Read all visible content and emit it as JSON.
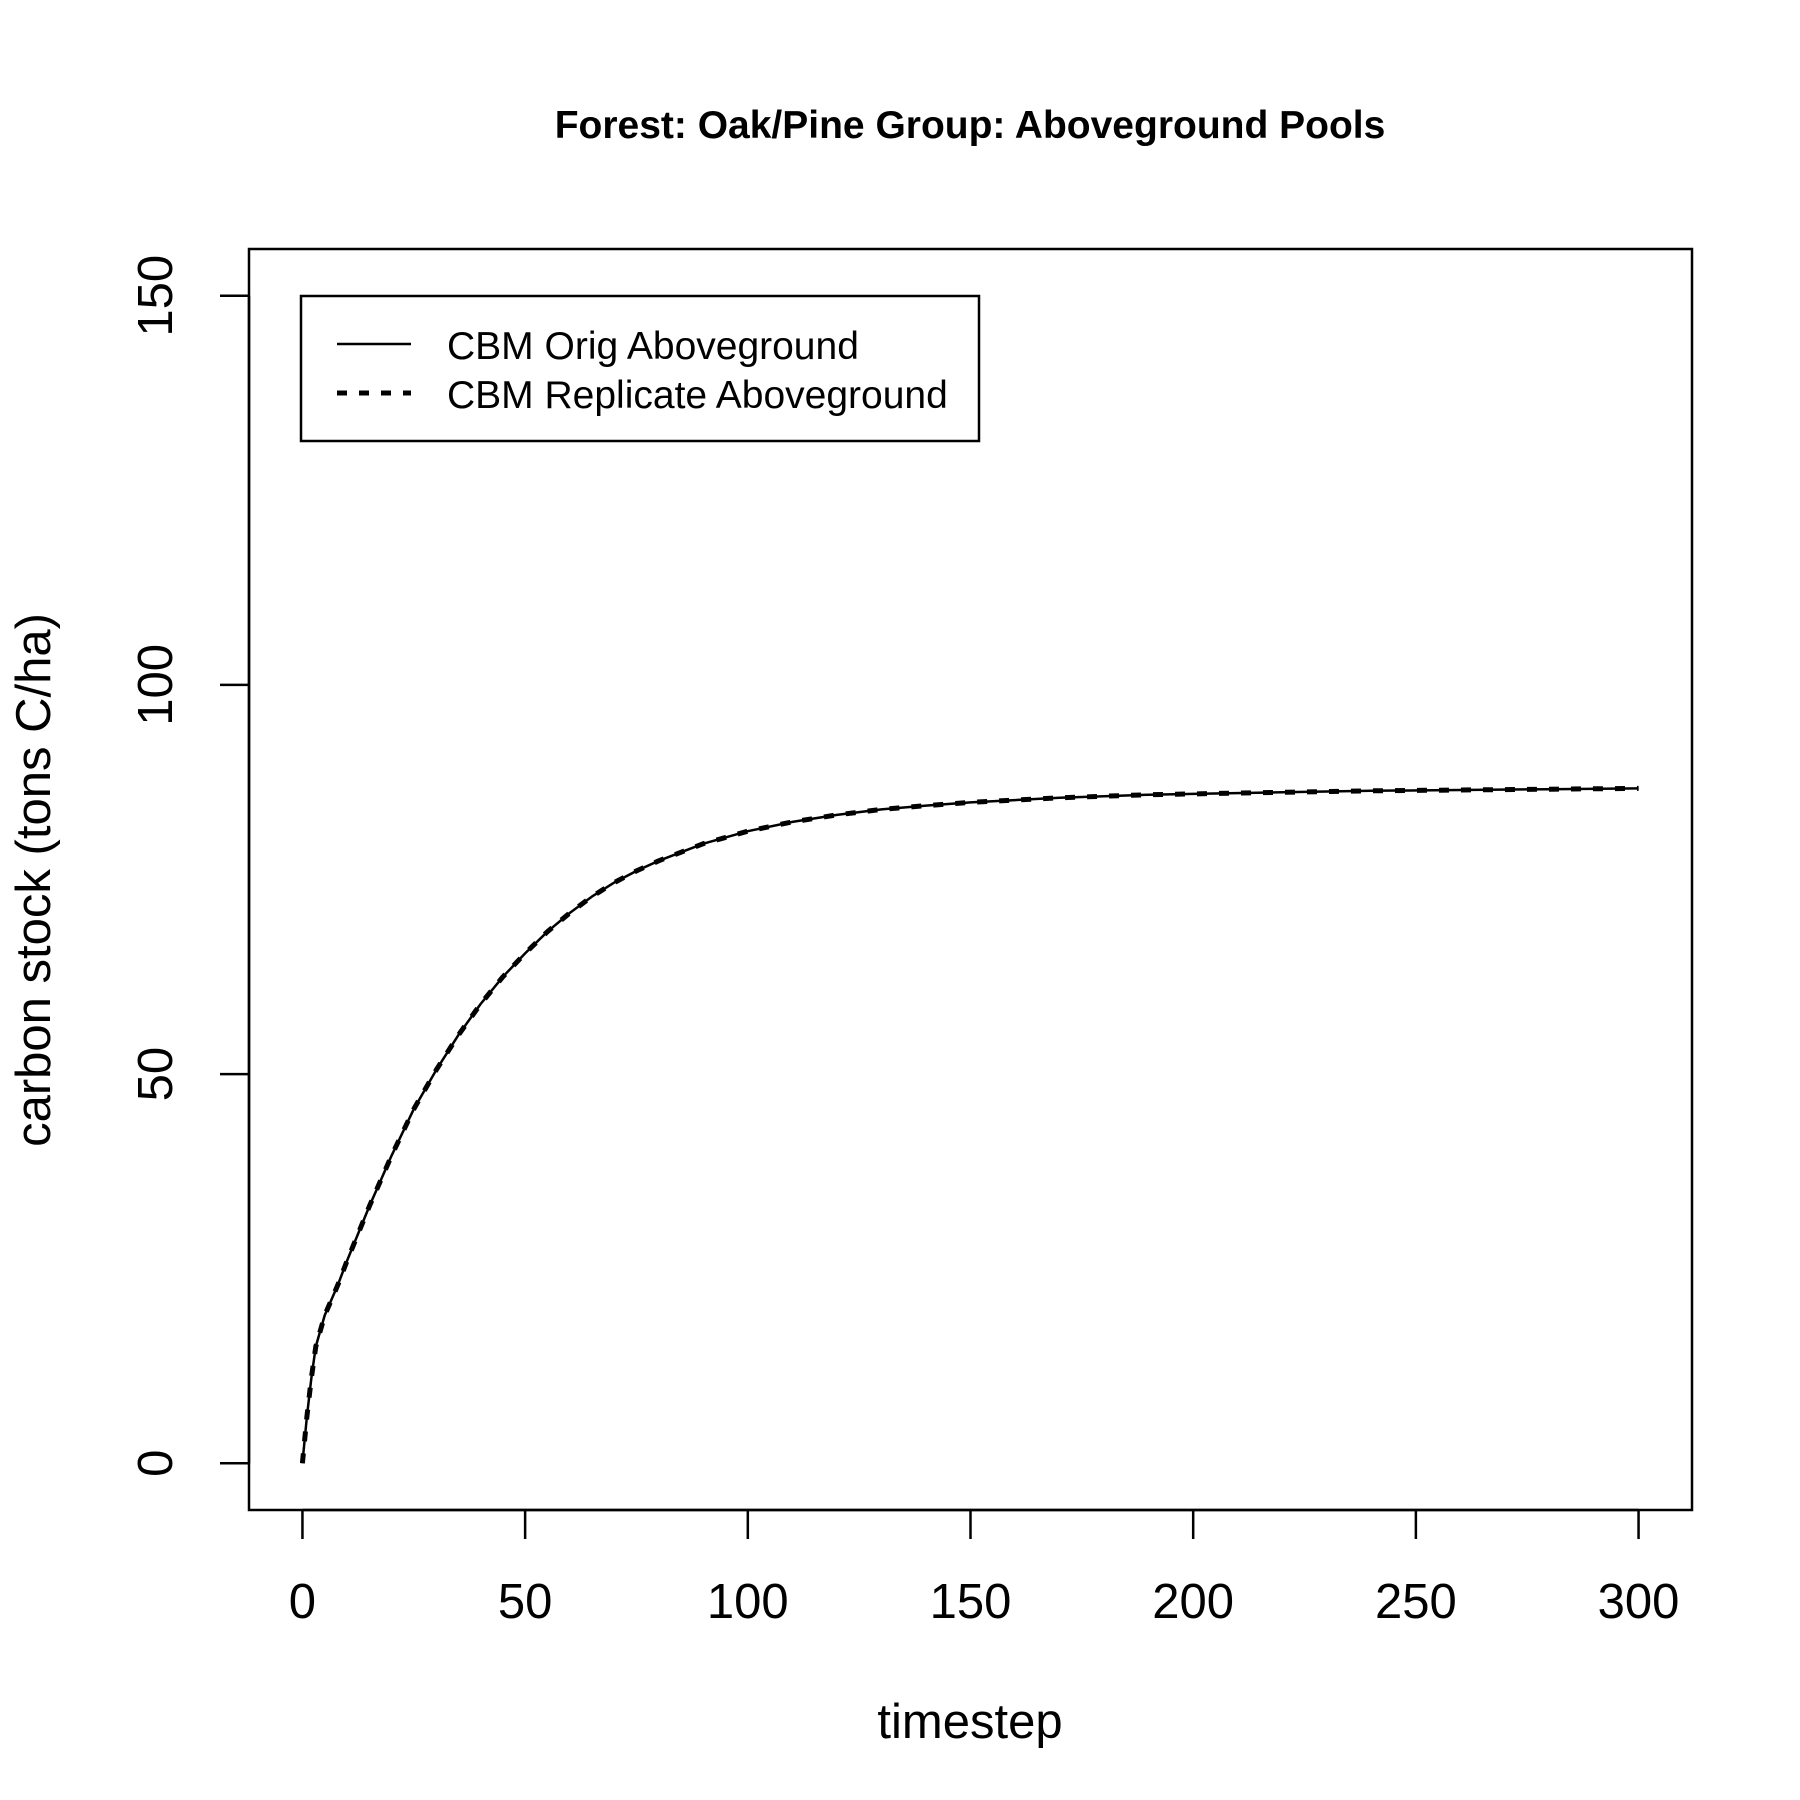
{
  "chart_data": {
    "type": "line",
    "title": "Forest: Oak/Pine Group: Aboveground Pools",
    "xlabel": "timestep",
    "ylabel": "carbon stock (tons C/ha)",
    "xlim": [
      -12,
      312
    ],
    "ylim": [
      -6,
      156
    ],
    "xticks": [
      0,
      50,
      100,
      150,
      200,
      250,
      300
    ],
    "yticks": [
      0,
      50,
      100,
      150
    ],
    "xtick_labels": [
      "0",
      "50",
      "100",
      "150",
      "200",
      "250",
      "300"
    ],
    "ytick_labels": [
      "0",
      "50",
      "100",
      "150"
    ],
    "legend": {
      "position": "top-left"
    },
    "series": [
      {
        "name": "CBM Orig Aboveground",
        "style": "solid",
        "color": "#000000",
        "x": [
          0,
          1,
          2,
          3,
          5,
          8,
          10,
          15,
          20,
          25,
          30,
          35,
          40,
          45,
          50,
          55,
          60,
          65,
          70,
          75,
          80,
          90,
          100,
          110,
          120,
          130,
          140,
          150,
          160,
          170,
          180,
          190,
          200,
          220,
          240,
          260,
          280,
          300
        ],
        "values": [
          0,
          6,
          11,
          15,
          19,
          23,
          26,
          33,
          39.5,
          45.5,
          50.5,
          55,
          59,
          62.5,
          65.5,
          68.3,
          70.7,
          72.8,
          74.6,
          76.1,
          77.4,
          79.6,
          81.2,
          82.4,
          83.3,
          84,
          84.5,
          84.9,
          85.2,
          85.5,
          85.7,
          85.9,
          86,
          86.2,
          86.4,
          86.5,
          86.6,
          86.7
        ]
      },
      {
        "name": "CBM Replicate Aboveground",
        "style": "dashed",
        "color": "#000000",
        "x": [
          0,
          1,
          2,
          3,
          5,
          8,
          10,
          15,
          20,
          25,
          30,
          35,
          40,
          45,
          50,
          55,
          60,
          65,
          70,
          75,
          80,
          90,
          100,
          110,
          120,
          130,
          140,
          150,
          160,
          170,
          180,
          190,
          200,
          220,
          240,
          260,
          280,
          300
        ],
        "values": [
          0,
          6,
          11,
          15,
          19,
          23,
          26,
          33,
          39.5,
          45.5,
          50.5,
          55,
          59,
          62.5,
          65.5,
          68.3,
          70.7,
          72.8,
          74.6,
          76.1,
          77.4,
          79.6,
          81.2,
          82.4,
          83.3,
          84,
          84.5,
          84.9,
          85.2,
          85.5,
          85.7,
          85.9,
          86,
          86.2,
          86.4,
          86.5,
          86.6,
          86.7
        ]
      }
    ]
  }
}
